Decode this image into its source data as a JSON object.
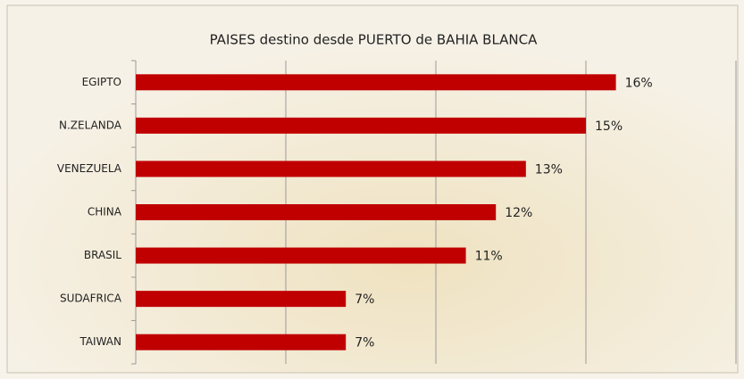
{
  "chart_data": {
    "type": "hbar",
    "title": "PAISES destino  desde PUERTO de BAHIA BLANCA",
    "categories": [
      "EGIPTO",
      "N.ZELANDA",
      "VENEZUELA",
      "CHINA",
      "BRASIL",
      "SUDAFRICA",
      "TAIWAN"
    ],
    "values": [
      16,
      15,
      13,
      12,
      11,
      7,
      7
    ],
    "value_labels": [
      "16%",
      "15%",
      "13%",
      "12%",
      "11%",
      "7%",
      "7%"
    ],
    "color": "#c00000",
    "xlim": [
      0,
      20
    ],
    "xticks": [
      0,
      5,
      10,
      15,
      20
    ],
    "grid": true
  }
}
